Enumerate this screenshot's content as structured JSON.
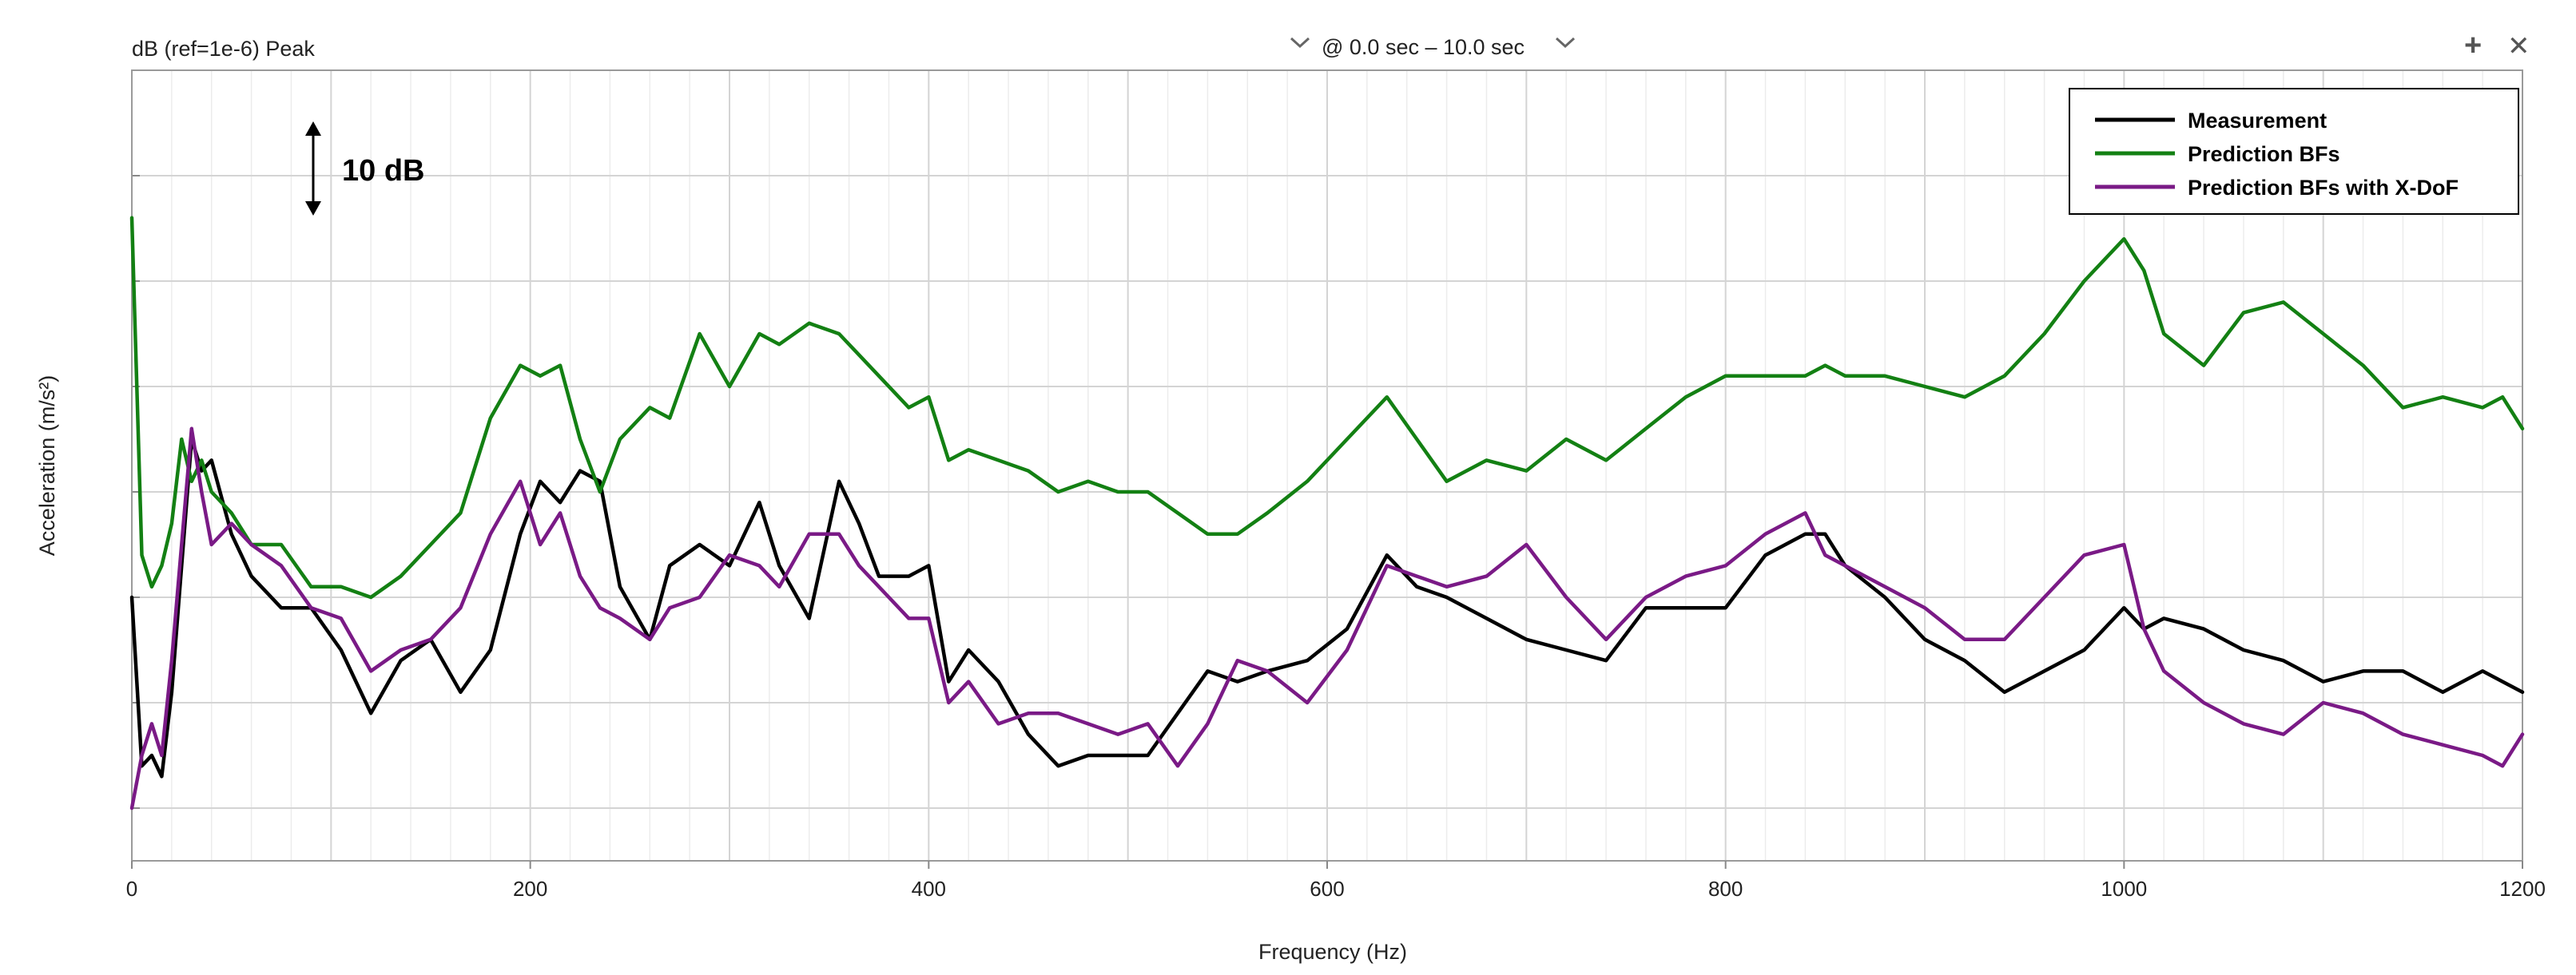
{
  "header": {
    "scale_label": "dB (ref=1e-6) Peak",
    "time_range": "@ 0.0 sec – 10.0 sec",
    "expand_icon": "chevron-down-icon",
    "add_icon": "+",
    "close_icon": "✕"
  },
  "annotation": {
    "label": "10 dB"
  },
  "chart_data": {
    "type": "line",
    "xlabel": "Frequency (Hz)",
    "ylabel": "Acceleration (m/s²)",
    "xlim": [
      0,
      1200
    ],
    "xticks": [
      "0",
      "200",
      "400",
      "600",
      "800",
      "1000",
      "1200"
    ],
    "ylim": [
      0,
      75
    ],
    "grid": true,
    "legend_position": "top-right",
    "series": [
      {
        "name": "Measurement",
        "color": "#000000",
        "x": [
          0,
          5,
          10,
          15,
          20,
          25,
          30,
          35,
          40,
          50,
          60,
          75,
          90,
          105,
          120,
          135,
          150,
          165,
          180,
          195,
          205,
          215,
          225,
          235,
          245,
          260,
          270,
          285,
          300,
          315,
          325,
          340,
          355,
          365,
          375,
          390,
          400,
          410,
          420,
          435,
          450,
          465,
          480,
          495,
          510,
          525,
          540,
          555,
          570,
          590,
          610,
          630,
          645,
          660,
          680,
          700,
          720,
          740,
          760,
          780,
          800,
          820,
          840,
          850,
          860,
          880,
          900,
          920,
          940,
          960,
          980,
          1000,
          1010,
          1020,
          1040,
          1060,
          1080,
          1100,
          1120,
          1140,
          1160,
          1180,
          1190,
          1200
        ],
        "y": [
          25,
          9,
          10,
          8,
          16,
          28,
          40,
          37,
          38,
          31,
          27,
          24,
          24,
          20,
          14,
          19,
          21,
          16,
          20,
          31,
          36,
          34,
          37,
          36,
          26,
          21,
          28,
          30,
          28,
          34,
          28,
          23,
          36,
          32,
          27,
          27,
          28,
          17,
          20,
          17,
          12,
          9,
          10,
          10,
          10,
          14,
          18,
          17,
          18,
          19,
          22,
          29,
          26,
          25,
          23,
          21,
          20,
          19,
          24,
          24,
          24,
          29,
          31,
          31,
          28,
          25,
          21,
          19,
          16,
          18,
          20,
          24,
          22,
          23,
          22,
          20,
          19,
          17,
          18,
          18,
          16,
          18,
          17,
          16
        ]
      },
      {
        "name": "Prediction BFs",
        "color": "#138013",
        "x": [
          0,
          5,
          10,
          15,
          20,
          25,
          30,
          35,
          40,
          50,
          60,
          75,
          90,
          105,
          120,
          135,
          150,
          165,
          180,
          195,
          205,
          215,
          225,
          235,
          245,
          260,
          270,
          285,
          300,
          315,
          325,
          340,
          355,
          365,
          375,
          390,
          400,
          410,
          420,
          435,
          450,
          465,
          480,
          495,
          510,
          525,
          540,
          555,
          570,
          590,
          610,
          630,
          645,
          660,
          680,
          700,
          720,
          740,
          760,
          780,
          800,
          820,
          840,
          850,
          860,
          880,
          900,
          920,
          940,
          960,
          980,
          1000,
          1010,
          1020,
          1040,
          1060,
          1080,
          1100,
          1120,
          1140,
          1160,
          1180,
          1190,
          1200
        ],
        "y": [
          61,
          29,
          26,
          28,
          32,
          40,
          36,
          38,
          35,
          33,
          30,
          30,
          26,
          26,
          25,
          27,
          30,
          33,
          42,
          47,
          46,
          47,
          40,
          35,
          40,
          43,
          42,
          50,
          45,
          50,
          49,
          51,
          50,
          48,
          46,
          43,
          44,
          38,
          39,
          38,
          37,
          35,
          36,
          35,
          35,
          33,
          31,
          31,
          33,
          36,
          40,
          44,
          40,
          36,
          38,
          37,
          40,
          38,
          41,
          44,
          46,
          46,
          46,
          47,
          46,
          46,
          45,
          44,
          46,
          50,
          55,
          59,
          56,
          50,
          47,
          52,
          53,
          50,
          47,
          43,
          44,
          43,
          44,
          41
        ]
      },
      {
        "name": "Prediction BFs with X-DoF",
        "color": "#7a1a86",
        "x": [
          0,
          5,
          10,
          15,
          20,
          25,
          30,
          35,
          40,
          50,
          60,
          75,
          90,
          105,
          120,
          135,
          150,
          165,
          180,
          195,
          205,
          215,
          225,
          235,
          245,
          260,
          270,
          285,
          300,
          315,
          325,
          340,
          355,
          365,
          375,
          390,
          400,
          410,
          420,
          435,
          450,
          465,
          480,
          495,
          510,
          525,
          540,
          555,
          570,
          590,
          610,
          630,
          645,
          660,
          680,
          700,
          720,
          740,
          760,
          780,
          800,
          820,
          840,
          850,
          860,
          880,
          900,
          920,
          940,
          960,
          980,
          1000,
          1010,
          1020,
          1040,
          1060,
          1080,
          1100,
          1120,
          1140,
          1160,
          1180,
          1190,
          1200
        ],
        "y": [
          5,
          10,
          13,
          10,
          19,
          30,
          41,
          35,
          30,
          32,
          30,
          28,
          24,
          23,
          18,
          20,
          21,
          24,
          31,
          36,
          30,
          33,
          27,
          24,
          23,
          21,
          24,
          25,
          29,
          28,
          26,
          31,
          31,
          28,
          26,
          23,
          23,
          15,
          17,
          13,
          14,
          14,
          13,
          12,
          13,
          9,
          13,
          19,
          18,
          15,
          20,
          28,
          27,
          26,
          27,
          30,
          25,
          21,
          25,
          27,
          28,
          31,
          33,
          29,
          28,
          26,
          24,
          21,
          21,
          25,
          29,
          30,
          22,
          18,
          15,
          13,
          12,
          15,
          14,
          12,
          11,
          10,
          9,
          12
        ]
      }
    ]
  }
}
